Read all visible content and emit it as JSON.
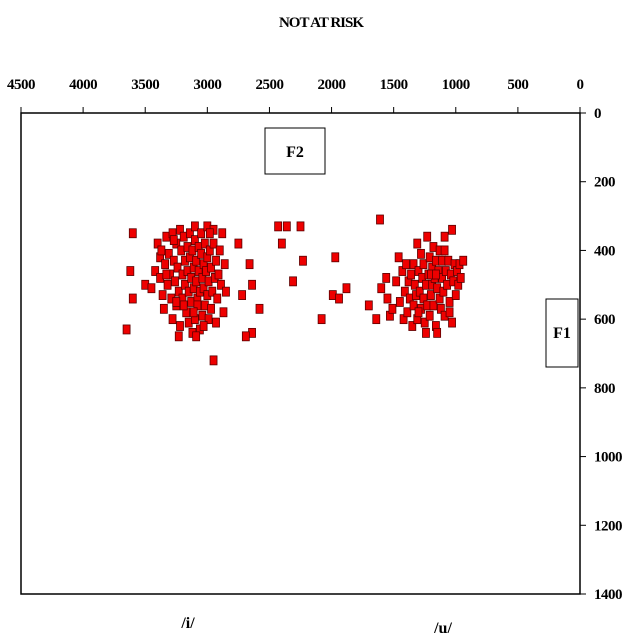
{
  "chart_data": {
    "type": "scatter",
    "title": "NOT AT RISK",
    "x_axis": {
      "label": "F2",
      "range": [
        4500,
        0
      ],
      "reversed": true,
      "position": "top",
      "ticks": [
        "4500",
        "4000",
        "3500",
        "3000",
        "2500",
        "2000",
        "1500",
        "1000",
        "500",
        "0"
      ]
    },
    "y_axis": {
      "label": "F1",
      "range": [
        0,
        1400
      ],
      "reversed": true,
      "position": "right",
      "ticks": [
        "0",
        "200",
        "400",
        "600",
        "800",
        "1000",
        "1200",
        "1400"
      ]
    },
    "annotations": [
      "/i/",
      "/u/"
    ],
    "grid": false,
    "marker": {
      "shape": "square",
      "fill": "#ee0000",
      "stroke": "#5a0000"
    },
    "points": [
      [
        3600,
        350
      ],
      [
        3620,
        460
      ],
      [
        3600,
        540
      ],
      [
        3650,
        630
      ],
      [
        3500,
        500
      ],
      [
        3450,
        510
      ],
      [
        3420,
        460
      ],
      [
        3400,
        380
      ],
      [
        3380,
        420
      ],
      [
        3380,
        480
      ],
      [
        3370,
        400
      ],
      [
        3360,
        530
      ],
      [
        3350,
        570
      ],
      [
        3340,
        440
      ],
      [
        3330,
        360
      ],
      [
        3320,
        500
      ],
      [
        3310,
        410
      ],
      [
        3300,
        470
      ],
      [
        3290,
        540
      ],
      [
        3280,
        350
      ],
      [
        3280,
        600
      ],
      [
        3270,
        430
      ],
      [
        3260,
        490
      ],
      [
        3250,
        380
      ],
      [
        3250,
        560
      ],
      [
        3240,
        450
      ],
      [
        3230,
        520
      ],
      [
        3220,
        340
      ],
      [
        3220,
        620
      ],
      [
        3210,
        400
      ],
      [
        3200,
        470
      ],
      [
        3200,
        540
      ],
      [
        3190,
        360
      ],
      [
        3180,
        430
      ],
      [
        3180,
        500
      ],
      [
        3170,
        580
      ],
      [
        3160,
        390
      ],
      [
        3160,
        460
      ],
      [
        3150,
        520
      ],
      [
        3150,
        610
      ],
      [
        3140,
        350
      ],
      [
        3140,
        420
      ],
      [
        3130,
        480
      ],
      [
        3130,
        550
      ],
      [
        3120,
        400
      ],
      [
        3120,
        640
      ],
      [
        3110,
        450
      ],
      [
        3110,
        510
      ],
      [
        3100,
        330
      ],
      [
        3100,
        370
      ],
      [
        3100,
        600
      ],
      [
        3090,
        430
      ],
      [
        3090,
        490
      ],
      [
        3080,
        540
      ],
      [
        3080,
        560
      ],
      [
        3070,
        390
      ],
      [
        3070,
        460
      ],
      [
        3060,
        520
      ],
      [
        3060,
        630
      ],
      [
        3050,
        350
      ],
      [
        3050,
        410
      ],
      [
        3040,
        480
      ],
      [
        3040,
        590
      ],
      [
        3030,
        440
      ],
      [
        3030,
        510
      ],
      [
        3020,
        380
      ],
      [
        3020,
        560
      ],
      [
        3010,
        460
      ],
      [
        3000,
        330
      ],
      [
        3000,
        420
      ],
      [
        3000,
        530
      ],
      [
        2990,
        490
      ],
      [
        2990,
        600
      ],
      [
        2980,
        400
      ],
      [
        2970,
        450
      ],
      [
        2970,
        570
      ],
      [
        2960,
        520
      ],
      [
        2950,
        380
      ],
      [
        2950,
        340
      ],
      [
        2940,
        480
      ],
      [
        2930,
        430
      ],
      [
        2930,
        610
      ],
      [
        2920,
        540
      ],
      [
        2910,
        470
      ],
      [
        2900,
        400
      ],
      [
        2890,
        500
      ],
      [
        2880,
        350
      ],
      [
        2870,
        580
      ],
      [
        2860,
        440
      ],
      [
        2850,
        520
      ],
      [
        2950,
        720
      ],
      [
        3090,
        650
      ],
      [
        3230,
        650
      ],
      [
        3250,
        550
      ],
      [
        3330,
        470
      ],
      [
        3270,
        370
      ],
      [
        3190,
        560
      ],
      [
        3110,
        580
      ],
      [
        3030,
        620
      ],
      [
        2980,
        350
      ],
      [
        2750,
        380
      ],
      [
        2720,
        530
      ],
      [
        2660,
        440
      ],
      [
        2640,
        500
      ],
      [
        2640,
        640
      ],
      [
        2690,
        650
      ],
      [
        2580,
        570
      ],
      [
        2430,
        330
      ],
      [
        2400,
        380
      ],
      [
        2360,
        330
      ],
      [
        2310,
        490
      ],
      [
        2250,
        330
      ],
      [
        2230,
        430
      ],
      [
        1970,
        420
      ],
      [
        2080,
        600
      ],
      [
        1990,
        530
      ],
      [
        1940,
        540
      ],
      [
        1880,
        510
      ],
      [
        1700,
        560
      ],
      [
        1640,
        600
      ],
      [
        1610,
        310
      ],
      [
        1600,
        510
      ],
      [
        1560,
        480
      ],
      [
        1550,
        540
      ],
      [
        1530,
        590
      ],
      [
        1510,
        570
      ],
      [
        1480,
        490
      ],
      [
        1460,
        420
      ],
      [
        1450,
        550
      ],
      [
        1430,
        460
      ],
      [
        1420,
        600
      ],
      [
        1410,
        520
      ],
      [
        1400,
        440
      ],
      [
        1390,
        580
      ],
      [
        1380,
        490
      ],
      [
        1370,
        540
      ],
      [
        1360,
        470
      ],
      [
        1350,
        620
      ],
      [
        1340,
        440
      ],
      [
        1340,
        560
      ],
      [
        1330,
        500
      ],
      [
        1320,
        530
      ],
      [
        1310,
        380
      ],
      [
        1310,
        600
      ],
      [
        1300,
        460
      ],
      [
        1290,
        520
      ],
      [
        1280,
        410
      ],
      [
        1280,
        570
      ],
      [
        1270,
        480
      ],
      [
        1260,
        440
      ],
      [
        1260,
        540
      ],
      [
        1250,
        610
      ],
      [
        1240,
        500
      ],
      [
        1230,
        360
      ],
      [
        1230,
        560
      ],
      [
        1220,
        470
      ],
      [
        1210,
        420
      ],
      [
        1210,
        590
      ],
      [
        1200,
        530
      ],
      [
        1190,
        450
      ],
      [
        1190,
        500
      ],
      [
        1180,
        390
      ],
      [
        1180,
        560
      ],
      [
        1170,
        480
      ],
      [
        1160,
        620
      ],
      [
        1160,
        430
      ],
      [
        1150,
        510
      ],
      [
        1140,
        460
      ],
      [
        1130,
        540
      ],
      [
        1130,
        400
      ],
      [
        1120,
        570
      ],
      [
        1110,
        480
      ],
      [
        1110,
        430
      ],
      [
        1100,
        520
      ],
      [
        1090,
        590
      ],
      [
        1090,
        360
      ],
      [
        1080,
        460
      ],
      [
        1070,
        500
      ],
      [
        1060,
        430
      ],
      [
        1050,
        550
      ],
      [
        1040,
        470
      ],
      [
        1030,
        610
      ],
      [
        1030,
        340
      ],
      [
        1020,
        490
      ],
      [
        1010,
        440
      ],
      [
        1000,
        530
      ],
      [
        990,
        460
      ],
      [
        980,
        500
      ],
      [
        970,
        440
      ],
      [
        960,
        480
      ],
      [
        940,
        430
      ],
      [
        1050,
        580
      ],
      [
        1150,
        640
      ],
      [
        1240,
        640
      ],
      [
        1300,
        580
      ],
      [
        1090,
        400
      ],
      [
        1200,
        470
      ],
      [
        1160,
        470
      ]
    ]
  }
}
